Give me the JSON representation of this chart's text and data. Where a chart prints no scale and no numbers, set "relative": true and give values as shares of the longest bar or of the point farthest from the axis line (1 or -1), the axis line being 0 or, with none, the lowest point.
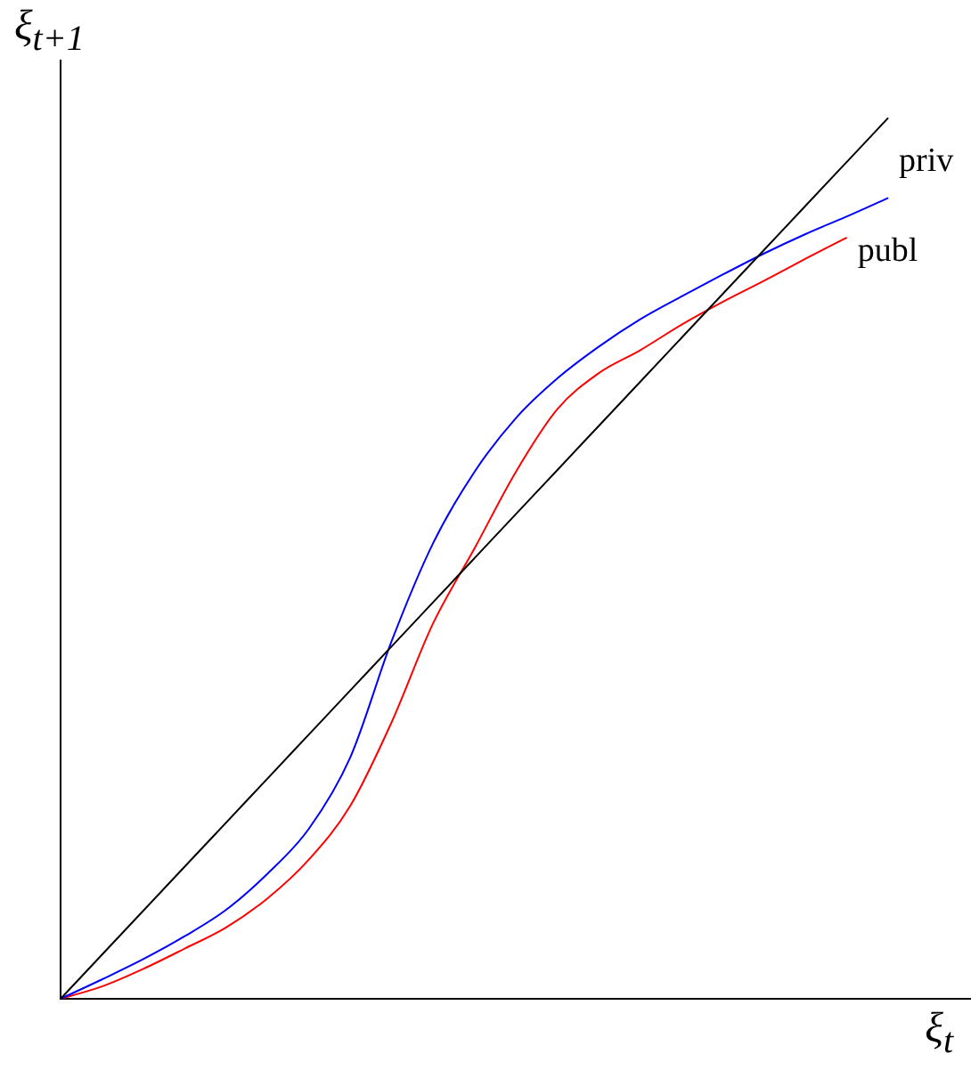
{
  "chart_data": {
    "type": "line",
    "relative": true,
    "xlabel": "ξ$_{t}$",
    "ylabel": "ξ$_{t+1}$",
    "grid": false,
    "legend": false,
    "marker": "none",
    "line_style": "solid",
    "categories": [
      null,
      null,
      null,
      null,
      null,
      null,
      null,
      null,
      null,
      null,
      null,
      null,
      null,
      null,
      null,
      null,
      null,
      null,
      null,
      null,
      null
    ],
    "series": [
      {
        "color": "#000000",
        "values": [
          0,
          0.05,
          0.1,
          0.15,
          0.2,
          0.25,
          0.3,
          0.35,
          0.4,
          0.45,
          0.5,
          0.55,
          0.6,
          0.65,
          0.7,
          0.75,
          0.8,
          0.85,
          0.9,
          0.95,
          1
        ]
      },
      {
        "name": "priv",
        "color": "#0000ff",
        "values": [
          0,
          0.022,
          0.045,
          0.071,
          0.101,
          0.142,
          0.193,
          0.274,
          0.406,
          0.517,
          0.598,
          0.659,
          0.704,
          0.74,
          0.771,
          0.797,
          0.822,
          0.846,
          0.868,
          0.888,
          0.909
        ]
      },
      {
        "name": "publ",
        "color": "#ff0000",
        "values": [
          0,
          0.014,
          0.034,
          0.057,
          0.081,
          0.114,
          0.158,
          0.219,
          0.314,
          0.426,
          0.511,
          0.598,
          0.669,
          0.71,
          0.736,
          0.765,
          0.791,
          0.815,
          0.84,
          0.864,
          null
        ]
      }
    ]
  }
}
